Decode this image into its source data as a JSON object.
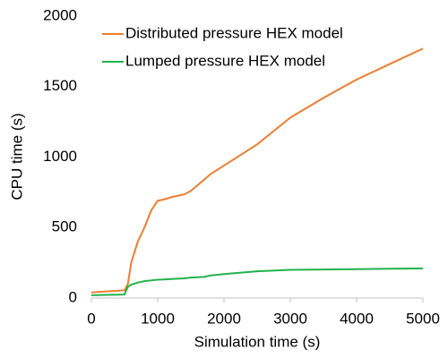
{
  "chart_data": {
    "type": "line",
    "xlabel": "Simulation time (s)",
    "ylabel": "CPU time (s)",
    "x": [
      0,
      500,
      550,
      600,
      700,
      800,
      900,
      1000,
      1100,
      1200,
      1400,
      1500,
      1700,
      1800,
      2000,
      2500,
      3000,
      3500,
      4000,
      4500,
      5000
    ],
    "series": [
      {
        "name": "Distributed pressure HEX model",
        "color": "#ed7d31",
        "values": [
          40,
          55,
          100,
          250,
          400,
          500,
          620,
          690,
          700,
          715,
          735,
          760,
          840,
          880,
          940,
          1090,
          1280,
          1420,
          1550,
          1660,
          1770
        ]
      },
      {
        "name": "Lumped pressure HEX model",
        "color": "#22b14c",
        "values": [
          20,
          25,
          80,
          95,
          110,
          120,
          125,
          130,
          132,
          135,
          140,
          145,
          150,
          160,
          170,
          190,
          200,
          202,
          205,
          208,
          210
        ]
      }
    ],
    "xlim": [
      0,
      5000
    ],
    "xticks": [
      0,
      1000,
      2000,
      3000,
      4000,
      5000
    ],
    "ylim": [
      0,
      2000
    ],
    "yticks": [
      0,
      500,
      1000,
      1500,
      2000
    ],
    "grid": false,
    "legend": "upper left"
  }
}
